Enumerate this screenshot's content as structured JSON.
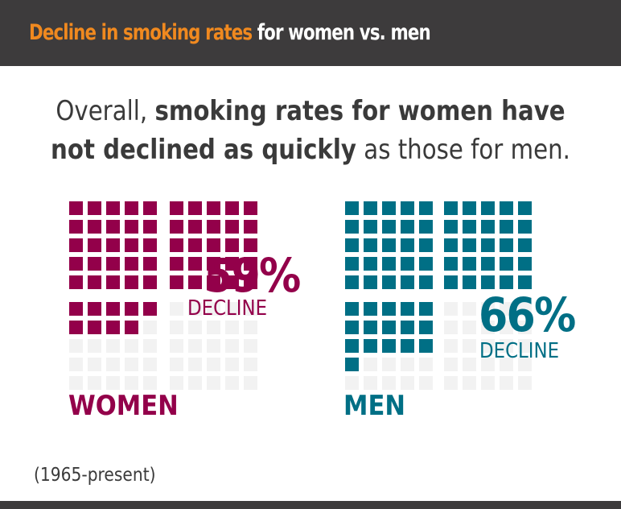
{
  "header": {
    "title_highlight": "Decline in smoking rates",
    "title_rest": " for women vs. men",
    "bg_color": "#3d3b3c",
    "highlight_color": "#f0891f"
  },
  "subtitle": {
    "line1_normal": "Overall, ",
    "line1_bold": "smoking rates for women have",
    "line2_bold": "not declined as quickly",
    "line2_normal": " as those for men."
  },
  "women": {
    "percent": "59%",
    "decline_label": "DECLINE",
    "group_label": "WOMEN",
    "filled": 59,
    "color": "#93004a"
  },
  "men": {
    "percent": "66%",
    "decline_label": "DECLINE",
    "group_label": "MEN",
    "filled": 66,
    "color": "#006f85"
  },
  "empty_color": "#f2f2f2",
  "footnote": "(1965-present)",
  "chart_data": {
    "type": "waffle",
    "title": "Decline in smoking rates for women vs. men",
    "subtitle": "Overall, smoking rates for women have not declined as quickly as those for men.",
    "grid": "10x10 (four 5x5 blocks, fill order: top-left, top-right, bottom-left, bottom-right)",
    "categories": [
      "WOMEN",
      "MEN"
    ],
    "values": [
      59,
      66
    ],
    "unit": "% decline",
    "labels": [
      "59% DECLINE",
      "66% DECLINE"
    ],
    "colors": [
      "#93004a",
      "#006f85"
    ],
    "annotation": "(1965-present)"
  }
}
